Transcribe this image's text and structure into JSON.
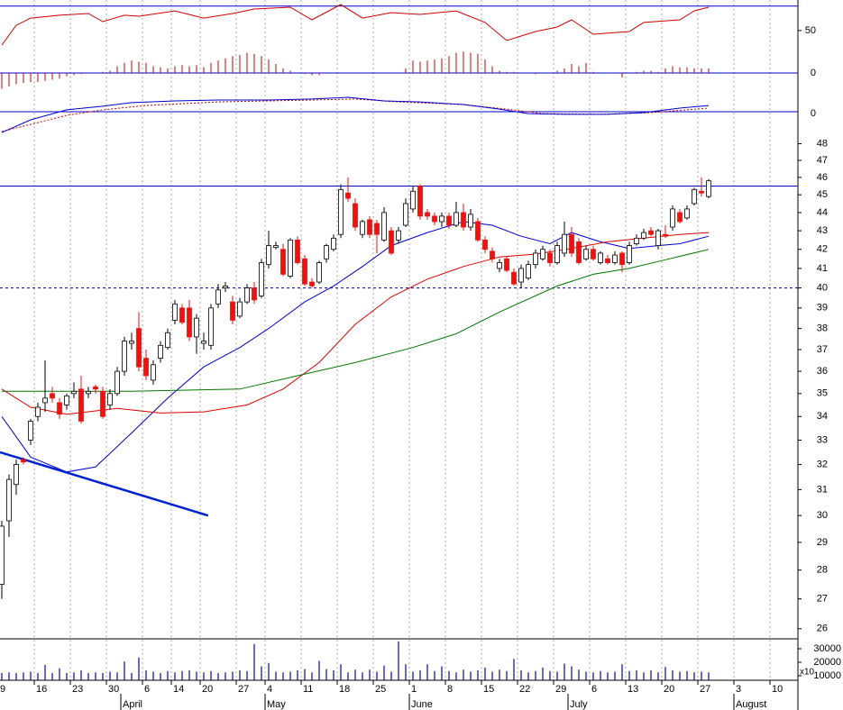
{
  "chart_data": {
    "type": "candlestick",
    "log_scale": true,
    "xlim": [
      -0.25,
      110.375
    ],
    "ylim": [
      25.7,
      48.8
    ],
    "yticks": [
      26,
      27,
      28,
      29,
      30,
      31,
      32,
      33,
      34,
      35,
      36,
      37,
      38,
      39,
      40,
      41,
      42,
      43,
      44,
      45,
      46,
      47,
      48
    ],
    "xticks": [
      {
        "value": 0,
        "label": "9"
      },
      {
        "value": 5,
        "label": "16"
      },
      {
        "value": 10,
        "label": "23"
      },
      {
        "value": 15,
        "label": "30"
      },
      {
        "value": 20,
        "label": "6"
      },
      {
        "value": 24,
        "label": "14"
      },
      {
        "value": 28,
        "label": "20"
      },
      {
        "value": 33,
        "label": "27"
      },
      {
        "value": 37,
        "label": "4"
      },
      {
        "value": 42,
        "label": "11"
      },
      {
        "value": 47,
        "label": "18"
      },
      {
        "value": 52,
        "label": "25"
      },
      {
        "value": 57,
        "label": "1"
      },
      {
        "value": 62,
        "label": "8"
      },
      {
        "value": 67,
        "label": "15"
      },
      {
        "value": 72,
        "label": "22"
      },
      {
        "value": 77,
        "label": "29"
      },
      {
        "value": 82,
        "label": "6"
      },
      {
        "value": 87,
        "label": "13"
      },
      {
        "value": 92,
        "label": "20"
      },
      {
        "value": 97,
        "label": "27"
      },
      {
        "value": 102,
        "label": "3"
      },
      {
        "value": 107,
        "label": "10"
      }
    ],
    "month_ticks": [
      {
        "value": 17,
        "label": "April"
      },
      {
        "value": 37,
        "label": "May"
      },
      {
        "value": 57,
        "label": "June"
      },
      {
        "value": 79,
        "label": "July"
      },
      {
        "value": 102,
        "label": "August"
      }
    ],
    "up_color": "#ffffff",
    "down_color": "#ee1111",
    "open": [
      27.5,
      29.8,
      31.2,
      32.2,
      33.0,
      34.0,
      34.6,
      35.0,
      34.6,
      34.5,
      35.0,
      35.2,
      35.0,
      35.3,
      35.1,
      34.5,
      35.0,
      36.0,
      37.3,
      38.0,
      36.6,
      35.6,
      36.6,
      37.1,
      38.4,
      39.0,
      39.0,
      37.6,
      37.3,
      37.2,
      39.2,
      40.0,
      39.3,
      38.6,
      39.3,
      40.0,
      39.6,
      41.2,
      42.1,
      42.0,
      40.6,
      42.5,
      41.5,
      40.3,
      40.3,
      41.5,
      42.0,
      42.8,
      45.1,
      44.5,
      42.8,
      43.6,
      43.4,
      42.5,
      43.0,
      42.5,
      43.3,
      44.2,
      45.5,
      44.0,
      43.8,
      43.5,
      43.8,
      43.3,
      44.0,
      43.2,
      43.5,
      42.5,
      41.9,
      41.0,
      41.5,
      40.8,
      40.3,
      40.5,
      41.2,
      41.5,
      41.8,
      41.3,
      41.8,
      42.8,
      42.4,
      41.5,
      42.0,
      41.3,
      41.5,
      41.3,
      41.8,
      41.3,
      42.3,
      42.6,
      43.0,
      42.2,
      42.8,
      43.2,
      44.0,
      43.7,
      44.5,
      45.2,
      44.9
    ],
    "high": [
      29.8,
      31.6,
      32.2,
      32.3,
      33.9,
      34.6,
      36.5,
      35.3,
      34.8,
      35.0,
      35.5,
      35.8,
      35.3,
      35.4,
      35.3,
      35.2,
      36.2,
      37.6,
      37.8,
      38.8,
      37.0,
      36.5,
      37.4,
      38.0,
      39.4,
      39.2,
      39.4,
      38.7,
      37.8,
      39.2,
      40.2,
      40.3,
      39.6,
      39.5,
      40.2,
      40.3,
      41.5,
      43.0,
      42.4,
      42.3,
      42.6,
      42.7,
      41.7,
      40.5,
      41.4,
      42.3,
      42.8,
      45.6,
      46.0,
      44.8,
      43.6,
      43.8,
      43.6,
      44.3,
      43.2,
      43.2,
      44.8,
      45.5,
      45.6,
      44.2,
      44.0,
      44.0,
      44.0,
      44.6,
      44.5,
      44.2,
      43.7,
      42.7,
      42.1,
      41.5,
      41.6,
      41.0,
      41.2,
      41.4,
      42.0,
      42.2,
      42.0,
      42.4,
      43.5,
      43.2,
      42.6,
      42.2,
      42.2,
      41.9,
      41.7,
      41.9,
      41.9,
      42.4,
      42.8,
      43.1,
      43.2,
      43.1,
      43.3,
      44.4,
      44.2,
      44.4,
      45.4,
      46.0,
      45.9
    ],
    "low": [
      27.0,
      29.2,
      30.8,
      32.0,
      32.8,
      33.8,
      34.2,
      34.6,
      33.9,
      34.3,
      34.8,
      33.7,
      34.8,
      35.0,
      33.9,
      34.3,
      34.9,
      35.8,
      37.0,
      36.0,
      35.6,
      35.4,
      36.4,
      37.0,
      38.2,
      38.2,
      37.4,
      36.8,
      37.0,
      37.0,
      39.0,
      39.8,
      38.2,
      38.5,
      39.2,
      39.2,
      39.5,
      41.0,
      42.0,
      40.6,
      40.5,
      41.2,
      40.1,
      40.0,
      40.2,
      41.3,
      41.9,
      42.6,
      44.6,
      43.0,
      42.6,
      42.6,
      41.8,
      42.4,
      41.7,
      42.3,
      43.2,
      44.0,
      43.6,
      43.6,
      43.3,
      43.2,
      43.1,
      43.2,
      43.0,
      43.0,
      42.4,
      41.8,
      41.3,
      40.8,
      40.8,
      40.1,
      40.0,
      40.4,
      41.0,
      41.4,
      41.1,
      41.2,
      41.6,
      41.6,
      41.2,
      41.4,
      41.4,
      41.2,
      41.2,
      41.2,
      40.8,
      41.2,
      42.2,
      42.5,
      42.7,
      42.0,
      42.6,
      43.0,
      43.4,
      43.6,
      44.4,
      44.9,
      44.8
    ],
    "close": [
      29.6,
      31.4,
      32.0,
      32.1,
      33.8,
      34.4,
      34.8,
      34.8,
      34.1,
      34.9,
      35.1,
      33.8,
      35.1,
      35.2,
      34.0,
      35.0,
      36.0,
      37.4,
      37.4,
      36.2,
      35.8,
      36.3,
      37.2,
      37.8,
      39.2,
      38.3,
      37.6,
      38.5,
      37.4,
      39.0,
      39.9,
      40.1,
      38.4,
      39.3,
      40.0,
      39.4,
      41.3,
      42.2,
      42.2,
      40.7,
      42.5,
      41.3,
      40.2,
      40.1,
      41.3,
      42.2,
      42.6,
      45.3,
      44.8,
      43.2,
      43.5,
      42.8,
      42.8,
      44.0,
      41.8,
      43.0,
      44.5,
      45.2,
      43.8,
      43.8,
      43.5,
      43.8,
      43.3,
      44.0,
      43.2,
      43.9,
      42.5,
      42.0,
      41.5,
      41.3,
      40.9,
      40.2,
      41.0,
      41.2,
      41.8,
      42.0,
      41.3,
      42.2,
      42.8,
      41.8,
      41.3,
      42.0,
      41.5,
      41.8,
      41.3,
      41.7,
      41.2,
      42.2,
      42.6,
      42.9,
      42.8,
      43.0,
      42.7,
      44.2,
      43.5,
      44.2,
      45.3,
      45.1,
      45.8
    ],
    "reference_lines": [
      {
        "value": 45.5,
        "color": "#0000cc",
        "style": "solid"
      },
      {
        "value": 40,
        "color": "#000099",
        "style": "dashed"
      }
    ],
    "trendline": {
      "color": "#0022cc",
      "x": [
        -0.25,
        28.6
      ],
      "values": [
        32.5,
        30
      ]
    },
    "moving_averages": [
      {
        "color": "#0000cc",
        "x": [
          0,
          4,
          9,
          13,
          18,
          23,
          28,
          33,
          37,
          42,
          46,
          50,
          54,
          59,
          64,
          68,
          72,
          76,
          79,
          83,
          87,
          91,
          94,
          98
        ],
        "values": [
          34.0,
          32.3,
          31.7,
          31.9,
          33.3,
          34.8,
          36.2,
          37.1,
          38.0,
          39.3,
          40.1,
          41.1,
          42.2,
          42.9,
          43.5,
          43.3,
          42.7,
          42.3,
          42.9,
          42.4,
          42.05,
          42.2,
          42.3,
          42.7
        ]
      },
      {
        "color": "#dd0000",
        "x": [
          0,
          4,
          9,
          16,
          22,
          28,
          34,
          39,
          44,
          49,
          54,
          59,
          64,
          69,
          74,
          79,
          84,
          89,
          94,
          98
        ],
        "values": [
          35.2,
          34.4,
          34.1,
          34.35,
          34.15,
          34.2,
          34.5,
          35.2,
          36.4,
          38.2,
          39.55,
          40.45,
          41.1,
          41.6,
          41.75,
          42.05,
          42.4,
          42.6,
          42.8,
          42.9
        ]
      },
      {
        "color": "#007700",
        "x": [
          0,
          7,
          18,
          33,
          41,
          49,
          57,
          63,
          69,
          77,
          82,
          87,
          92,
          98
        ],
        "values": [
          35.1,
          35.1,
          35.1,
          35.2,
          35.8,
          36.4,
          37.1,
          37.75,
          38.8,
          40.1,
          40.7,
          41.0,
          41.45,
          42.0
        ]
      }
    ],
    "rsi": {
      "ylim": [
        30,
        75
      ],
      "yticks": [
        50
      ],
      "reference": 70,
      "reference_color": "#0000cc",
      "color": "#cc0000",
      "x": [
        0,
        2,
        4,
        8,
        12,
        14,
        17,
        19,
        24,
        28,
        32,
        35,
        40,
        43,
        47,
        50,
        54,
        58,
        63,
        67,
        70,
        74,
        77,
        79,
        82,
        87,
        89,
        94,
        96,
        98
      ],
      "values": [
        38.1,
        54.3,
        60.2,
        62.5,
        63.9,
        57.3,
        62.5,
        61.7,
        66.1,
        60.2,
        63.9,
        67.6,
        69.1,
        58.8,
        71.3,
        60.2,
        64.7,
        63.2,
        66.1,
        56.6,
        41.8,
        49.2,
        52.9,
        58.8,
        47.0,
        49.2,
        56.6,
        58.8,
        66.1,
        69.1
      ]
    },
    "macd_histogram": {
      "ylim": [
        -1,
        1
      ],
      "yticks": [
        0
      ],
      "zero_color": "#0000cc",
      "color": "#cc0000",
      "values": [
        -0.7,
        -0.6,
        -0.5,
        -0.45,
        -0.4,
        -0.4,
        -0.35,
        -0.3,
        -0.25,
        -0.15,
        -0.1,
        -0.05,
        0,
        0,
        0.05,
        0.1,
        0.3,
        0.45,
        0.55,
        0.5,
        0.45,
        0.3,
        0.25,
        0.2,
        0.3,
        0.35,
        0.3,
        0.35,
        0.25,
        0.45,
        0.55,
        0.65,
        0.75,
        0.8,
        0.9,
        0.85,
        0.75,
        0.6,
        0.4,
        0.2,
        0.1,
        0,
        -0.05,
        -0.1,
        -0.1,
        0,
        0,
        0,
        0,
        0,
        0,
        0,
        0,
        0,
        0,
        0,
        0.2,
        0.55,
        0.5,
        0.55,
        0.6,
        0.65,
        0.75,
        0.9,
        0.95,
        0.9,
        0.85,
        0.6,
        0.3,
        0.1,
        0.05,
        0.05,
        0,
        0,
        -0.05,
        0,
        0,
        0.1,
        0.2,
        0.4,
        0.3,
        0.45,
        0.05,
        0,
        0,
        0,
        -0.2,
        0,
        0.05,
        0.1,
        0.1,
        0.05,
        0.2,
        0.3,
        0.25,
        0.25,
        0.2,
        0.2,
        0.2
      ]
    },
    "macd": {
      "ylim": [
        -1.2,
        1
      ],
      "yticks": [
        0
      ],
      "zero_color": "#0000cc",
      "line": {
        "color": "#0000cc",
        "x": [
          0,
          4,
          9,
          14,
          18,
          24,
          30,
          37,
          43,
          48,
          53,
          58,
          64,
          69,
          73,
          78,
          84,
          89,
          94,
          98
        ],
        "values": [
          -1.1,
          -0.43,
          0.1,
          0.29,
          0.48,
          0.57,
          0.62,
          0.62,
          0.67,
          0.76,
          0.57,
          0.52,
          0.38,
          0.14,
          -0.1,
          -0.14,
          -0.14,
          -0.05,
          0.19,
          0.33
        ]
      },
      "signal": {
        "color": "#cc0000",
        "x": [
          0,
          4,
          9,
          14,
          20,
          30,
          43,
          49,
          55,
          64,
          70,
          75,
          83,
          90,
          98
        ],
        "values": [
          -1.05,
          -0.67,
          -0.19,
          0.1,
          0.33,
          0.52,
          0.62,
          0.67,
          0.52,
          0.38,
          0.14,
          -0.1,
          -0.14,
          -0.05,
          0.19
        ]
      }
    },
    "volume": {
      "ylim": [
        6667,
        36667
      ],
      "yticks": [
        10000,
        20000,
        30000
      ],
      "unit": "x10",
      "color": "#0000cc",
      "values": [
        12000,
        12500,
        12000,
        12500,
        13000,
        12000,
        18000,
        12000,
        15500,
        12000,
        12500,
        14000,
        12000,
        12500,
        12000,
        13000,
        12500,
        20500,
        12000,
        23500,
        14000,
        13000,
        12000,
        13500,
        12500,
        13500,
        14000,
        13000,
        12500,
        13500,
        12000,
        12500,
        13000,
        14000,
        13500,
        33500,
        17000,
        19500,
        13000,
        12500,
        13000,
        14000,
        15000,
        12500,
        21000,
        15000,
        14000,
        18500,
        12500,
        14500,
        12500,
        14500,
        13000,
        17500,
        13000,
        35500,
        18500,
        13000,
        14000,
        18500,
        13500,
        17000,
        13500,
        12500,
        14500,
        13000,
        14000,
        16000,
        13000,
        14500,
        13500,
        22500,
        14000,
        12500,
        13500,
        16000,
        13500,
        13000,
        19000,
        17000,
        14500,
        13000,
        12500,
        13500,
        12500,
        13000,
        18500,
        13500,
        14000,
        12500,
        14000,
        12500,
        16500,
        14000,
        13000,
        13500,
        12500,
        13000,
        12500
      ]
    }
  }
}
